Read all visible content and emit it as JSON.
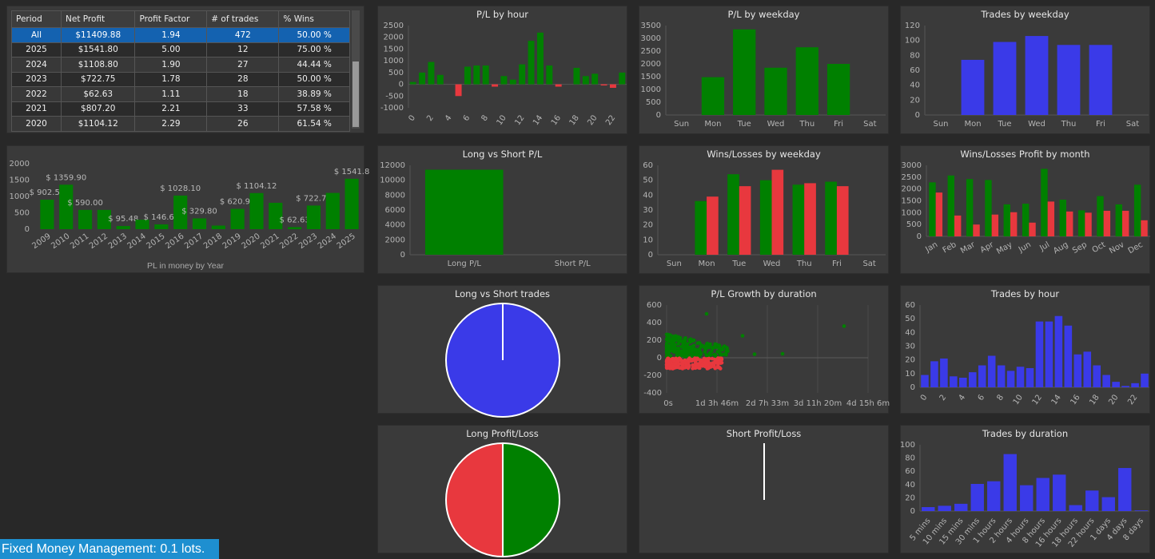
{
  "table": {
    "headers": [
      "Period",
      "Net Profit",
      "Profit Factor",
      "# of trades",
      "% Wins"
    ],
    "rows": [
      [
        "All",
        "$11409.88",
        "1.94",
        "472",
        "50.00 %"
      ],
      [
        "2025",
        "$1541.80",
        "5.00",
        "12",
        "75.00 %"
      ],
      [
        "2024",
        "$1108.80",
        "1.90",
        "27",
        "44.44 %"
      ],
      [
        "2023",
        "$722.75",
        "1.78",
        "28",
        "50.00 %"
      ],
      [
        "2022",
        "$62.63",
        "1.11",
        "18",
        "38.89 %"
      ],
      [
        "2021",
        "$807.20",
        "2.21",
        "33",
        "57.58 %"
      ],
      [
        "2020",
        "$1104.12",
        "2.29",
        "26",
        "61.54 %"
      ]
    ]
  },
  "status_text": "Fixed Money Management: 0.1 lots.",
  "colors": {
    "green": "#008000",
    "red": "#e8383e",
    "blue": "#3a3ae8",
    "panel": "#3a3a3a",
    "bg": "#282828"
  },
  "chart_data": [
    {
      "id": "pl-by-year",
      "type": "bar",
      "title": "",
      "xlabel": "PL in money by Year",
      "categories": [
        "2009",
        "2010",
        "2011",
        "2012",
        "2013",
        "2014",
        "2015",
        "2016",
        "2017",
        "2018",
        "2019",
        "2020",
        "2021",
        "2022",
        "2023",
        "2024",
        "2025"
      ],
      "values": [
        902.5,
        1359.9,
        590,
        590,
        95.48,
        290,
        146.6,
        1028.1,
        329.8,
        110,
        620.9,
        1104.12,
        807.2,
        62.63,
        722.75,
        1108.8,
        1541.8
      ],
      "data_labels": [
        "$ 902.50",
        "$ 1359.90",
        "$ 590.00",
        "",
        "$ 95.48",
        "",
        "$ 146.60",
        "$ 1028.10",
        "$ 329.80",
        "",
        "$ 620.90",
        "$ 1104.12",
        "",
        "$ 62.63",
        "$ 722.75",
        "",
        "$ 1541.8"
      ],
      "yticks": [
        0,
        500,
        1000,
        1500,
        2000
      ],
      "ylim": [
        0,
        2100
      ]
    },
    {
      "id": "pl-by-hour",
      "type": "bar",
      "title": "P/L by hour",
      "categories": [
        "0",
        "1",
        "2",
        "3",
        "4",
        "5",
        "6",
        "7",
        "8",
        "9",
        "10",
        "11",
        "12",
        "13",
        "14",
        "15",
        "16",
        "17",
        "18",
        "19",
        "20",
        "21",
        "22",
        "23"
      ],
      "tick_labels": [
        "0",
        "2",
        "4",
        "6",
        "8",
        "10",
        "12",
        "14",
        "16",
        "18",
        "20",
        "22"
      ],
      "values": [
        100,
        500,
        950,
        400,
        0,
        -500,
        750,
        800,
        800,
        -100,
        350,
        200,
        850,
        1850,
        2200,
        800,
        -100,
        0,
        700,
        350,
        450,
        -50,
        -150,
        500
      ],
      "yticks": [
        -1000,
        -500,
        0,
        500,
        1000,
        1500,
        2000,
        2500
      ],
      "ylim": [
        -1000,
        2500
      ]
    },
    {
      "id": "pl-by-weekday",
      "type": "bar",
      "title": "P/L by weekday",
      "categories": [
        "Sun",
        "Mon",
        "Tue",
        "Wed",
        "Thu",
        "Fri",
        "Sat"
      ],
      "values": [
        0,
        1480,
        3350,
        1850,
        2650,
        2000,
        0
      ],
      "yticks": [
        0,
        500,
        1000,
        1500,
        2000,
        2500,
        3000,
        3500
      ],
      "ylim": [
        0,
        3500
      ]
    },
    {
      "id": "trades-by-weekday",
      "type": "bar",
      "title": "Trades by weekday",
      "categories": [
        "Sun",
        "Mon",
        "Tue",
        "Wed",
        "Thu",
        "Fri",
        "Sat"
      ],
      "values": [
        0,
        74,
        98,
        106,
        94,
        94,
        0
      ],
      "yticks": [
        0,
        20,
        40,
        60,
        80,
        100,
        120
      ],
      "ylim": [
        0,
        120
      ]
    },
    {
      "id": "long-vs-short-pl",
      "type": "bar",
      "title": "Long vs Short P/L",
      "categories": [
        "Long P/L",
        "Short P/L"
      ],
      "values": [
        11409.88,
        0
      ],
      "yticks": [
        0,
        2000,
        4000,
        6000,
        8000,
        10000,
        12000
      ],
      "ylim": [
        0,
        12000
      ]
    },
    {
      "id": "wins-losses-by-weekday",
      "type": "bar",
      "title": "Wins/Losses by weekday",
      "categories": [
        "Sun",
        "Mon",
        "Tue",
        "Wed",
        "Thu",
        "Fri",
        "Sat"
      ],
      "series": [
        {
          "values": [
            0,
            36,
            54,
            50,
            47,
            49,
            0
          ]
        },
        {
          "values": [
            0,
            39,
            46,
            57,
            48,
            46,
            0
          ]
        }
      ],
      "yticks": [
        0,
        10,
        20,
        30,
        40,
        50,
        60
      ],
      "ylim": [
        0,
        60
      ]
    },
    {
      "id": "wins-losses-profit-by-month",
      "type": "bar",
      "title": "Wins/Losses Profit by month",
      "categories": [
        "Jan",
        "Feb",
        "Mar",
        "Apr",
        "May",
        "Jun",
        "Jul",
        "Aug",
        "Sep",
        "Oct",
        "Nov",
        "Dec"
      ],
      "series": [
        {
          "values": [
            2280,
            2570,
            2420,
            2380,
            1350,
            1380,
            2850,
            1550,
            1100,
            1700,
            1350,
            2180
          ]
        },
        {
          "values": [
            1850,
            880,
            500,
            920,
            1020,
            580,
            1470,
            1050,
            1000,
            1080,
            1080,
            680
          ]
        }
      ],
      "yticks": [
        0,
        500,
        1000,
        1500,
        2000,
        2500,
        3000
      ],
      "ylim": [
        0,
        3000
      ]
    },
    {
      "id": "long-vs-short-trades",
      "type": "pie",
      "title": "Long vs Short trades",
      "values": [
        472,
        0
      ]
    },
    {
      "id": "pl-growth-by-duration",
      "type": "scatter",
      "title": "P/L Growth by duration",
      "xticks": [
        "0s",
        "1d 3h 46m",
        "2d 7h 33m",
        "3d 11h 20m",
        "4d 15h 6m"
      ],
      "yticks": [
        -400,
        -200,
        0,
        200,
        400,
        600
      ],
      "ylim": [
        -400,
        600
      ]
    },
    {
      "id": "trades-by-hour",
      "type": "bar",
      "title": "Trades by hour",
      "categories": [
        "0",
        "1",
        "2",
        "3",
        "4",
        "5",
        "6",
        "7",
        "8",
        "9",
        "10",
        "11",
        "12",
        "13",
        "14",
        "15",
        "16",
        "17",
        "18",
        "19",
        "20",
        "21",
        "22",
        "23"
      ],
      "tick_labels": [
        "0",
        "2",
        "4",
        "6",
        "8",
        "10",
        "12",
        "14",
        "16",
        "18",
        "20",
        "22"
      ],
      "values": [
        9,
        19,
        21,
        8,
        7,
        11,
        16,
        23,
        16,
        12,
        15,
        14,
        48,
        48,
        52,
        45,
        24,
        26,
        16,
        9,
        4,
        1,
        3,
        10
      ],
      "yticks": [
        0,
        10,
        20,
        30,
        40,
        50,
        60
      ],
      "ylim": [
        0,
        60
      ]
    },
    {
      "id": "long-profit-loss",
      "type": "pie",
      "title": "Long Profit/Loss",
      "values": [
        236,
        236
      ]
    },
    {
      "id": "short-profit-loss",
      "type": "pie",
      "title": "Short Profit/Loss",
      "values": []
    },
    {
      "id": "trades-by-duration",
      "type": "bar",
      "title": "Trades by duration",
      "categories": [
        "5 mins",
        "10 mins",
        "15 mins",
        "30 mins",
        "1 hours",
        "2 hours",
        "4 hours",
        "8 hours",
        "16 hours",
        "18 hours",
        "22 hours",
        "1 days",
        "4 days",
        "8 days"
      ],
      "values": [
        6,
        8,
        11,
        41,
        45,
        86,
        39,
        50,
        55,
        9,
        31,
        21,
        65,
        1
      ],
      "yticks": [
        0,
        20,
        40,
        60,
        80,
        100
      ],
      "ylim": [
        0,
        100
      ]
    }
  ]
}
